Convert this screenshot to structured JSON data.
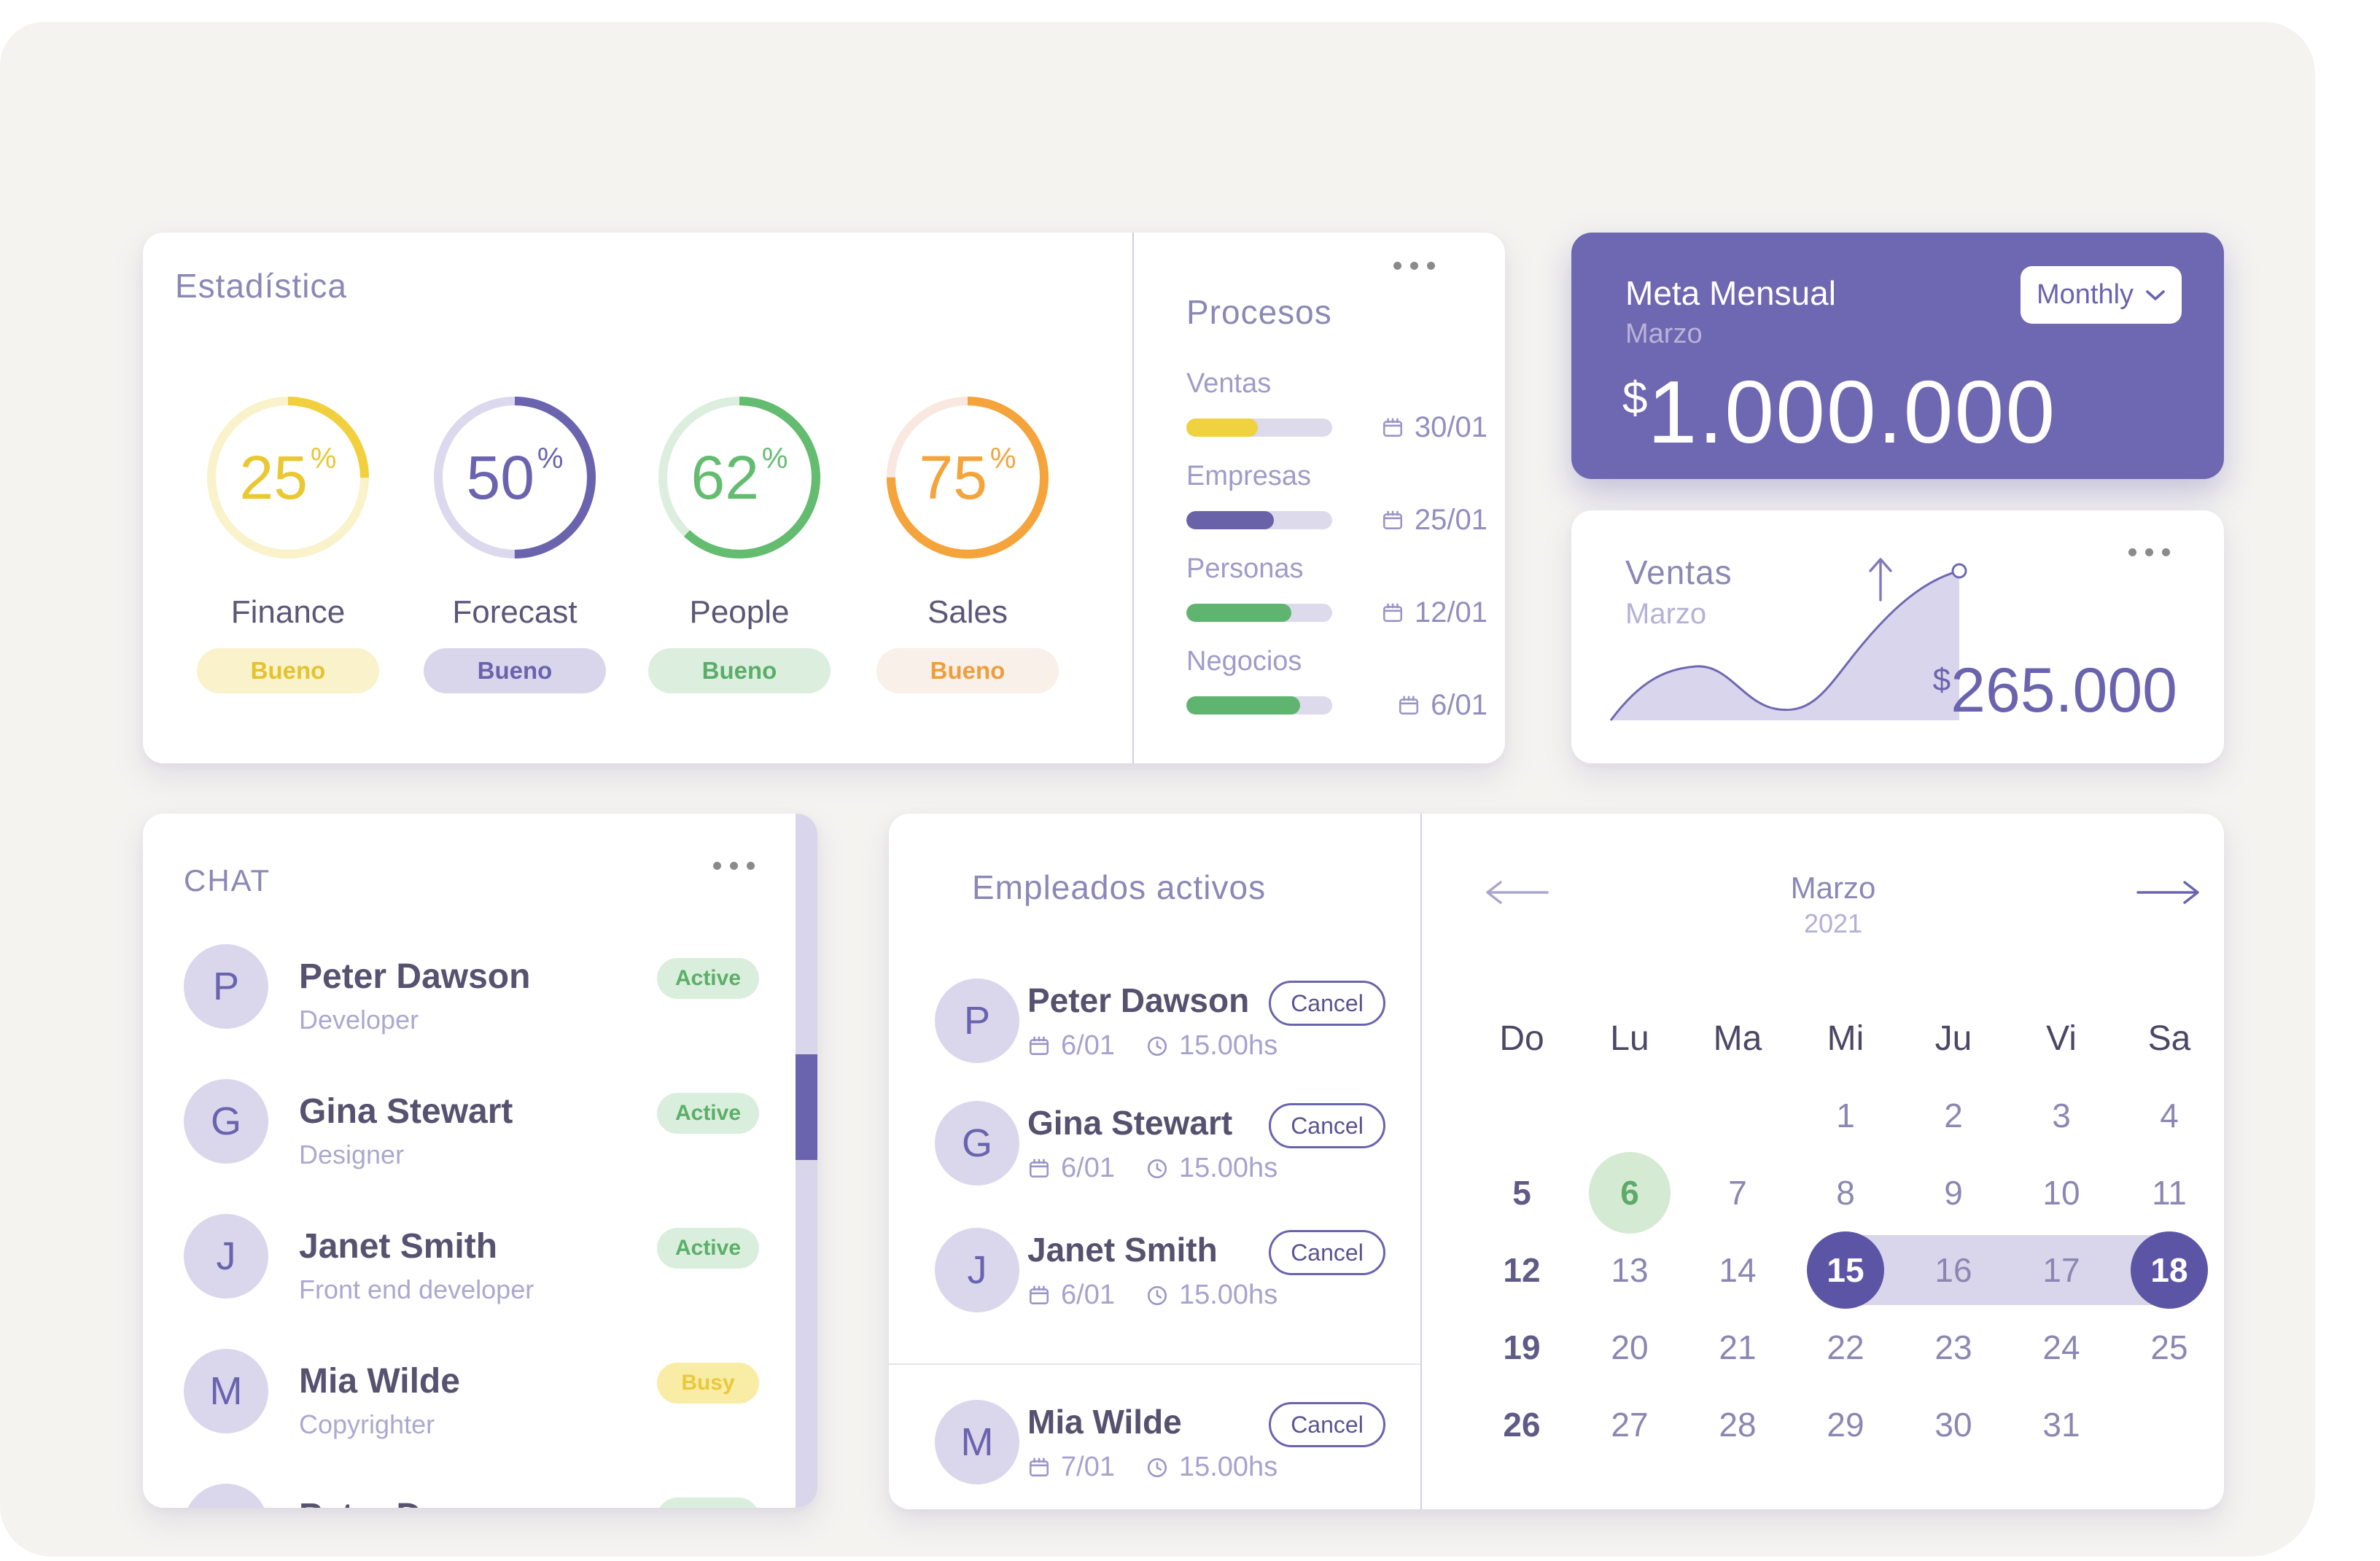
{
  "colors": {
    "page_bg": "#FFFFFF",
    "panel_bg": "#F4F3F0",
    "card_bg": "#FFFFFF",
    "accent_purple": "#6A63AE",
    "accent_purple_light": "#D9D6EC",
    "meta_card_bg": "#6E67B1",
    "yellow": "#F2CF3C",
    "green": "#63BC70",
    "orange": "#F5A33B",
    "title_text": "#8C88B6",
    "dark_text": "#56526F",
    "muted_text": "#ACA8CF",
    "calendar_selected": "#5C55A5",
    "calendar_range": "#D9D5EA",
    "calendar_event_bg": "#D5EAD2",
    "calendar_event_text": "#5FA96B"
  },
  "stats": {
    "title": "Estadística",
    "rings": [
      {
        "label": "Finance",
        "value": 25,
        "unit": "%",
        "status": "Bueno",
        "color": "yellow"
      },
      {
        "label": "Forecast",
        "value": 50,
        "unit": "%",
        "status": "Bueno",
        "color": "purple"
      },
      {
        "label": "People",
        "value": 62,
        "unit": "%",
        "status": "Bueno",
        "color": "green"
      },
      {
        "label": "Sales",
        "value": 75,
        "unit": "%",
        "status": "Bueno",
        "color": "orange"
      }
    ]
  },
  "procesos": {
    "title": "Procesos",
    "items": [
      {
        "label": "Ventas",
        "progress_pct": 49,
        "color": "yellow",
        "date": "30/01"
      },
      {
        "label": "Empresas",
        "progress_pct": 60,
        "color": "purple",
        "date": "25/01"
      },
      {
        "label": "Personas",
        "progress_pct": 72,
        "color": "green",
        "date": "12/01"
      },
      {
        "label": "Negocios",
        "progress_pct": 78,
        "color": "green",
        "date": "6/01"
      }
    ]
  },
  "meta": {
    "title": "Meta Mensual",
    "subtitle": "Marzo",
    "currency": "$",
    "amount": "1.000.000",
    "period_selector": "Monthly"
  },
  "ventas": {
    "title": "Ventas",
    "subtitle": "Marzo",
    "currency": "$",
    "amount": "265.000",
    "chart_data": {
      "type": "area",
      "title": "Ventas Marzo",
      "series": [
        {
          "name": "Ventas",
          "values": [
            2,
            16,
            32,
            35,
            24,
            15,
            13,
            20,
            42,
            68,
            92,
            100
          ]
        }
      ],
      "x": [
        0,
        1,
        2,
        3,
        4,
        5,
        6,
        7,
        8,
        9,
        10,
        11
      ],
      "axes_visible": false,
      "annotations": [
        "up-arrow",
        "peak-marker",
        "total $265.000"
      ]
    }
  },
  "chat": {
    "title": "CHAT",
    "items": [
      {
        "initial": "P",
        "name": "Peter Dawson",
        "role": "Developer",
        "status": "Active"
      },
      {
        "initial": "G",
        "name": "Gina Stewart",
        "role": "Designer",
        "status": "Active"
      },
      {
        "initial": "J",
        "name": "Janet Smith",
        "role": "Front end developer",
        "status": "Active"
      },
      {
        "initial": "M",
        "name": "Mia Wilde",
        "role": "Copyrighter",
        "status": "Busy"
      },
      {
        "initial": "P",
        "name": "Peter Dawson",
        "role": "",
        "status": "Active"
      }
    ]
  },
  "empleados": {
    "title": "Empleados activos",
    "items": [
      {
        "initial": "P",
        "name": "Peter Dawson",
        "date": "6/01",
        "time": "15.00hs",
        "action": "Cancel"
      },
      {
        "initial": "G",
        "name": "Gina Stewart",
        "date": "6/01",
        "time": "15.00hs",
        "action": "Cancel"
      },
      {
        "initial": "J",
        "name": "Janet Smith",
        "date": "6/01",
        "time": "15.00hs",
        "action": "Cancel"
      },
      {
        "initial": "M",
        "name": "Mia Wilde",
        "date": "7/01",
        "time": "15.00hs",
        "action": "Cancel"
      }
    ]
  },
  "calendar": {
    "month": "Marzo",
    "year": "2021",
    "day_headers": [
      "Do",
      "Lu",
      "Ma",
      "Mi",
      "Ju",
      "Vi",
      "Sa"
    ],
    "weeks": [
      [
        "",
        "",
        "",
        "1",
        "2",
        "3",
        "4"
      ],
      [
        "5",
        "6",
        "7",
        "8",
        "9",
        "10",
        "11"
      ],
      [
        "12",
        "13",
        "14",
        "15",
        "16",
        "17",
        "18"
      ],
      [
        "19",
        "20",
        "21",
        "22",
        "23",
        "24",
        "25"
      ],
      [
        "26",
        "27",
        "28",
        "29",
        "30",
        "31",
        ""
      ]
    ],
    "event_day": "6",
    "range_start": "15",
    "range_end": "18",
    "in_range_days": [
      "16",
      "17"
    ]
  }
}
